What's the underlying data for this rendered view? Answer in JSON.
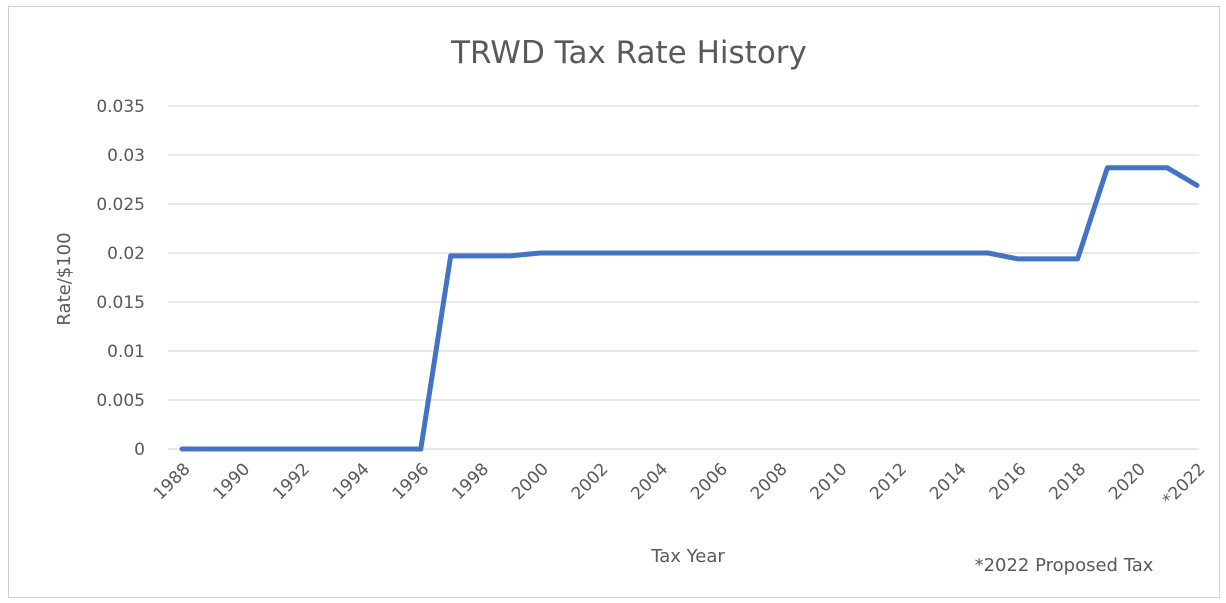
{
  "chart_data": {
    "type": "line",
    "title": "TRWD Tax Rate History",
    "xlabel": "Tax Year",
    "ylabel": "Rate/$100",
    "footnote": "*2022 Proposed Tax",
    "x": [
      1988,
      1989,
      1990,
      1991,
      1992,
      1993,
      1994,
      1995,
      1996,
      1997,
      1998,
      1999,
      2000,
      2001,
      2002,
      2003,
      2004,
      2005,
      2006,
      2007,
      2008,
      2009,
      2010,
      2011,
      2012,
      2013,
      2014,
      2015,
      2016,
      2017,
      2018,
      2019,
      2020,
      2021,
      2022
    ],
    "x_tick_labels": [
      "1988",
      "1990",
      "1992",
      "1994",
      "1996",
      "1998",
      "2000",
      "2002",
      "2004",
      "2006",
      "2008",
      "2010",
      "2012",
      "2014",
      "2016",
      "2018",
      "2020",
      "*2022"
    ],
    "y_tick_labels": [
      "0",
      "0.005",
      "0.01",
      "0.015",
      "0.02",
      "0.025",
      "0.03",
      "0.035"
    ],
    "series": [
      {
        "values": [
          0,
          0,
          0,
          0,
          0,
          0,
          0,
          0,
          0,
          0.0197,
          0.0197,
          0.0197,
          0.02,
          0.02,
          0.02,
          0.02,
          0.02,
          0.02,
          0.02,
          0.02,
          0.02,
          0.02,
          0.02,
          0.02,
          0.02,
          0.02,
          0.02,
          0.02,
          0.0194,
          0.0194,
          0.0194,
          0.0287,
          0.0287,
          0.0287,
          0.0269
        ],
        "color": "#4472c4"
      }
    ],
    "ylim": [
      0,
      0.035
    ],
    "xlim": [
      1988,
      2022
    ],
    "grid": true,
    "legend": "none"
  }
}
